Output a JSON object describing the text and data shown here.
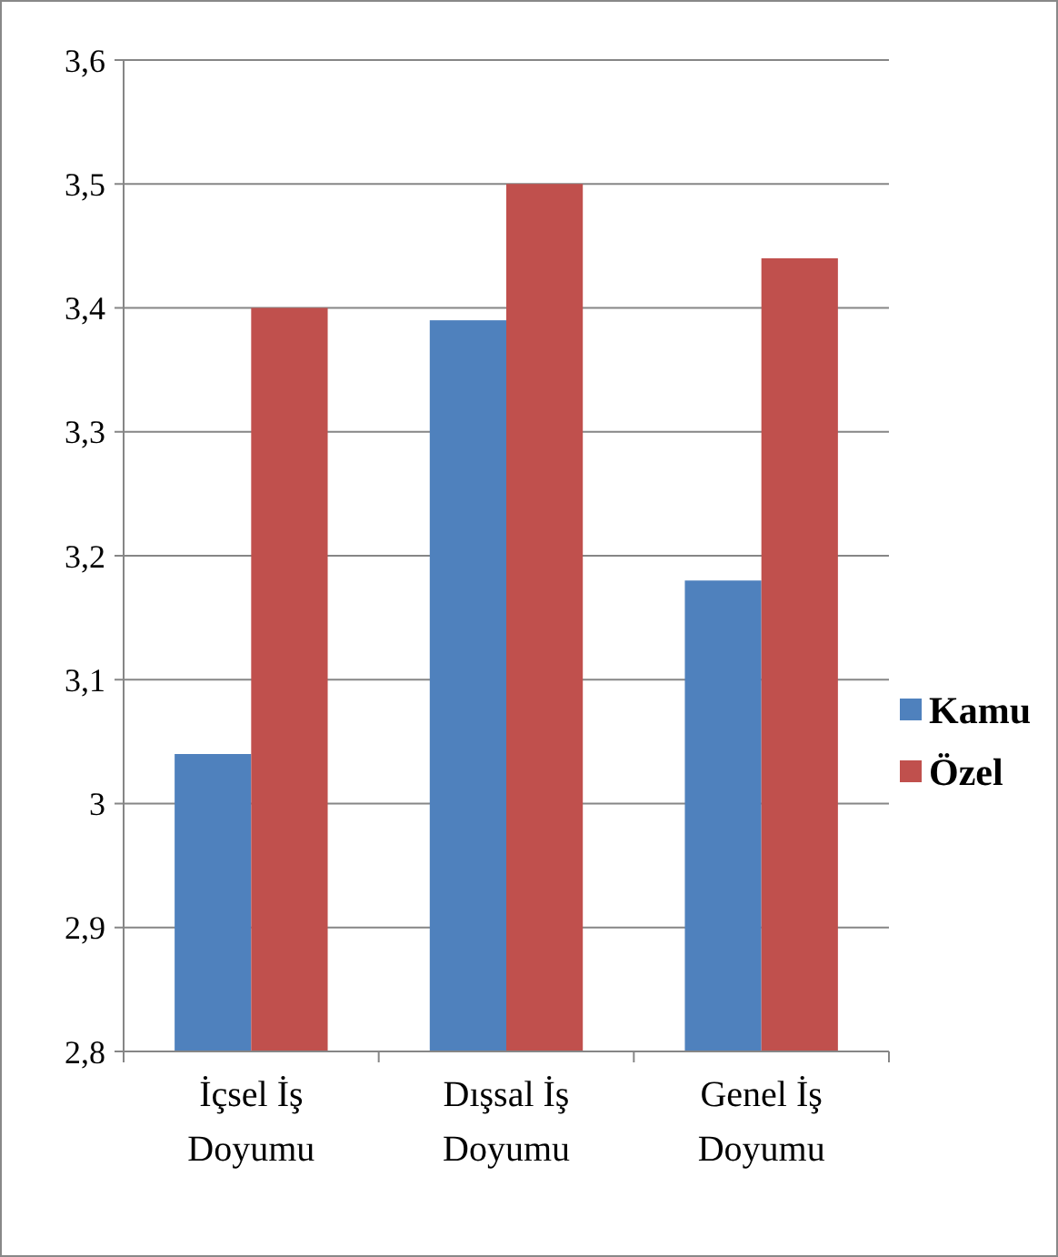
{
  "chart_data": {
    "type": "bar",
    "categories": [
      "İçsel İş Doyumu",
      "Dışsal İş Doyumu",
      "Genel İş Doyumu"
    ],
    "series": [
      {
        "name": "Kamu",
        "color": "#4f81bd",
        "values": [
          3.04,
          3.39,
          3.18
        ]
      },
      {
        "name": "Özel",
        "color": "#c0504d",
        "values": [
          3.4,
          3.5,
          3.44
        ]
      }
    ],
    "ylim": [
      2.8,
      3.6
    ],
    "yticks": [
      {
        "value": 2.8,
        "label": "2,8"
      },
      {
        "value": 2.9,
        "label": "2,9"
      },
      {
        "value": 3,
        "label": "3"
      },
      {
        "value": 3.1,
        "label": "3,1"
      },
      {
        "value": 3.2,
        "label": "3,2"
      },
      {
        "value": 3.3,
        "label": "3,3"
      },
      {
        "value": 3.4,
        "label": "3,4"
      },
      {
        "value": 3.5,
        "label": "3,5"
      },
      {
        "value": 3.6,
        "label": "3,6"
      }
    ],
    "grid": "y",
    "legend": "right"
  }
}
